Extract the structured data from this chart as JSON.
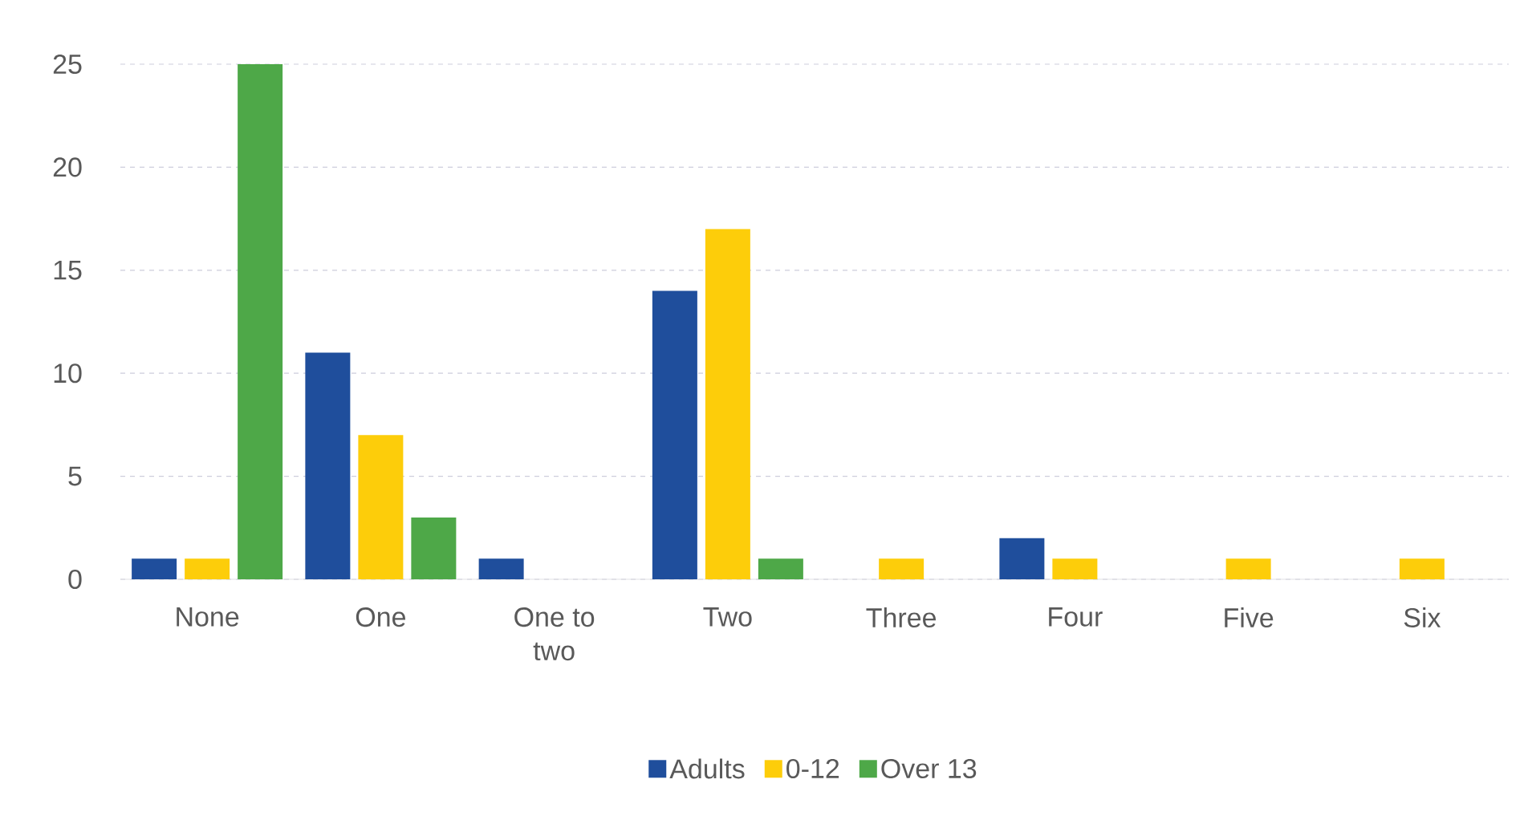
{
  "chart_data": {
    "type": "bar",
    "categories": [
      "None",
      "One",
      "One to two",
      "Two",
      "Three",
      "Four",
      "Five",
      "Six"
    ],
    "series": [
      {
        "name": "Adults",
        "color": "#1f4e9c",
        "values": [
          1,
          11,
          1,
          14,
          null,
          2,
          null,
          null
        ]
      },
      {
        "name": "0-12",
        "color": "#fdcd0a",
        "values": [
          1,
          7,
          null,
          17,
          1,
          1,
          1,
          1
        ]
      },
      {
        "name": "Over 13",
        "color": "#4ea848",
        "values": [
          25,
          3,
          null,
          1,
          null,
          null,
          null,
          null
        ]
      }
    ],
    "ylim": [
      0,
      25
    ],
    "yticks": [
      0,
      5,
      10,
      15,
      20,
      25
    ],
    "grid": "y",
    "legend": "bottom"
  }
}
